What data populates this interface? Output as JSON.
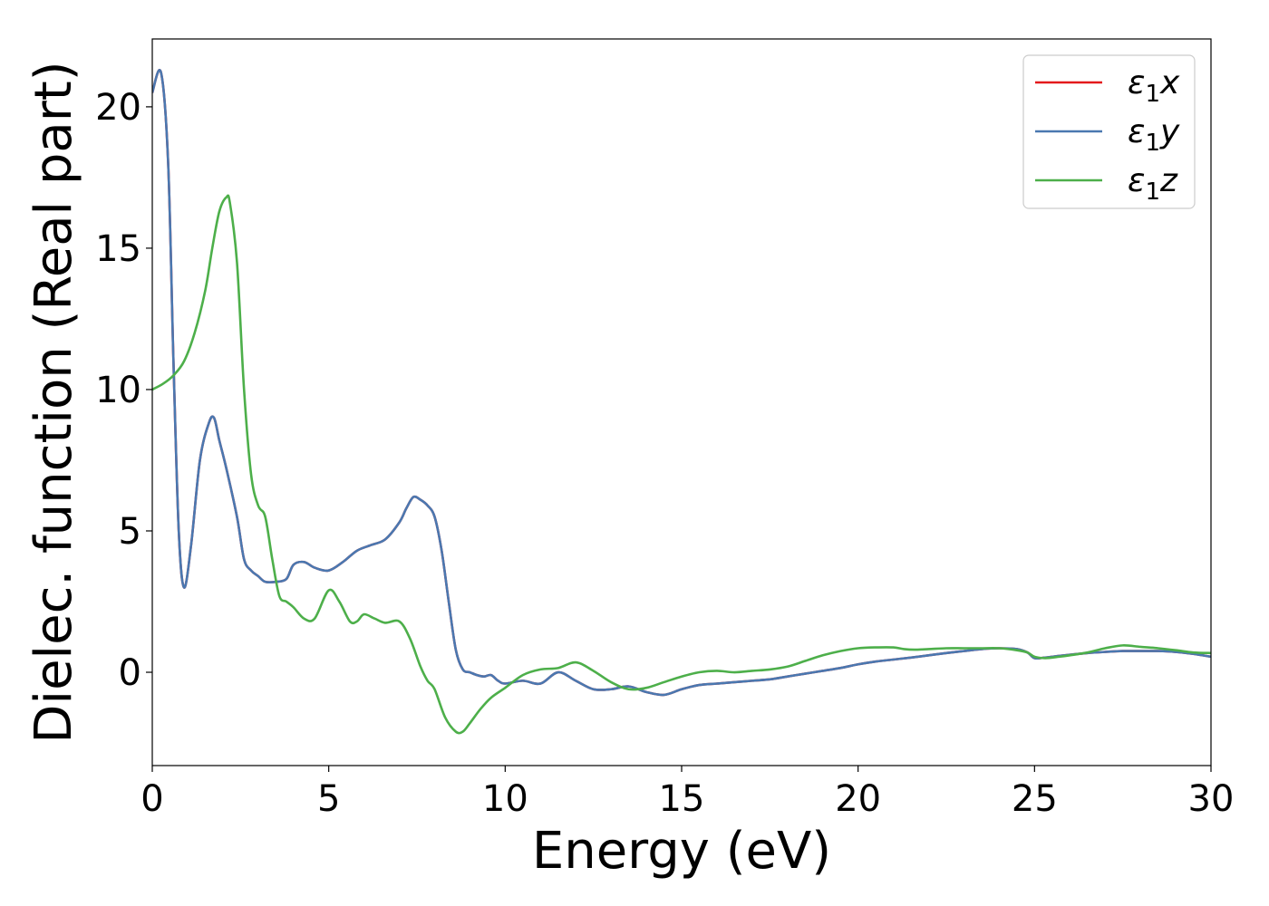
{
  "chart_data": {
    "type": "line",
    "title": "",
    "xlabel": "Energy (eV)",
    "ylabel": "Dielec. function (Real part)",
    "xlim": [
      0,
      30
    ],
    "ylim": [
      -3.3,
      22.4
    ],
    "xticks": [
      0,
      5,
      10,
      15,
      20,
      25,
      30
    ],
    "yticks": [
      0,
      5,
      10,
      15,
      20
    ],
    "grid": false,
    "legend_position": "top-right",
    "series": [
      {
        "name": "ε₁x",
        "legend_label": "ε1x",
        "color": "#e41a1c",
        "x": [
          0,
          0.25,
          0.45,
          0.6,
          0.75,
          0.9,
          1.1,
          1.35,
          1.6,
          1.75,
          1.9,
          2.1,
          2.4,
          2.6,
          2.8,
          3.0,
          3.2,
          3.5,
          3.8,
          4.0,
          4.3,
          4.6,
          5.0,
          5.4,
          5.8,
          6.2,
          6.6,
          7.0,
          7.2,
          7.4,
          7.6,
          7.8,
          8.0,
          8.2,
          8.4,
          8.6,
          8.8,
          9.0,
          9.2,
          9.4,
          9.6,
          9.8,
          10.0,
          10.5,
          11.0,
          11.5,
          12.0,
          12.5,
          13.0,
          13.5,
          14.0,
          14.5,
          15.0,
          15.5,
          16.0,
          16.5,
          17.0,
          17.5,
          18.0,
          18.5,
          19.0,
          19.5,
          20.0,
          20.5,
          21.0,
          21.5,
          22.0,
          22.5,
          23.0,
          23.5,
          24.0,
          24.5,
          24.8,
          25.0,
          25.3,
          25.7,
          26.0,
          26.5,
          27.0,
          27.5,
          28.0,
          28.5,
          29.0,
          29.5,
          30.0
        ],
        "y": [
          20.5,
          21.2,
          18.0,
          11.0,
          5.0,
          3.0,
          4.5,
          7.5,
          8.8,
          9.0,
          8.2,
          7.2,
          5.5,
          4.0,
          3.6,
          3.4,
          3.2,
          3.2,
          3.3,
          3.8,
          3.9,
          3.7,
          3.6,
          3.9,
          4.3,
          4.5,
          4.7,
          5.3,
          5.8,
          6.2,
          6.1,
          5.9,
          5.5,
          4.3,
          2.5,
          0.8,
          0.1,
          0.0,
          -0.1,
          -0.15,
          -0.1,
          -0.3,
          -0.4,
          -0.3,
          -0.4,
          0.0,
          -0.3,
          -0.6,
          -0.6,
          -0.5,
          -0.7,
          -0.8,
          -0.6,
          -0.45,
          -0.4,
          -0.35,
          -0.3,
          -0.25,
          -0.15,
          -0.05,
          0.05,
          0.15,
          0.28,
          0.38,
          0.45,
          0.52,
          0.6,
          0.68,
          0.75,
          0.82,
          0.85,
          0.82,
          0.7,
          0.5,
          0.52,
          0.58,
          0.62,
          0.68,
          0.72,
          0.75,
          0.75,
          0.75,
          0.72,
          0.65,
          0.55
        ]
      },
      {
        "name": "ε₁y",
        "legend_label": "ε1y",
        "color": "#4a78b0",
        "x": [
          0,
          0.25,
          0.45,
          0.6,
          0.75,
          0.9,
          1.1,
          1.35,
          1.6,
          1.75,
          1.9,
          2.1,
          2.4,
          2.6,
          2.8,
          3.0,
          3.2,
          3.5,
          3.8,
          4.0,
          4.3,
          4.6,
          5.0,
          5.4,
          5.8,
          6.2,
          6.6,
          7.0,
          7.2,
          7.4,
          7.6,
          7.8,
          8.0,
          8.2,
          8.4,
          8.6,
          8.8,
          9.0,
          9.2,
          9.4,
          9.6,
          9.8,
          10.0,
          10.5,
          11.0,
          11.5,
          12.0,
          12.5,
          13.0,
          13.5,
          14.0,
          14.5,
          15.0,
          15.5,
          16.0,
          16.5,
          17.0,
          17.5,
          18.0,
          18.5,
          19.0,
          19.5,
          20.0,
          20.5,
          21.0,
          21.5,
          22.0,
          22.5,
          23.0,
          23.5,
          24.0,
          24.5,
          24.8,
          25.0,
          25.3,
          25.7,
          26.0,
          26.5,
          27.0,
          27.5,
          28.0,
          28.5,
          29.0,
          29.5,
          30.0
        ],
        "y": [
          20.5,
          21.2,
          18.0,
          11.0,
          5.0,
          3.0,
          4.5,
          7.5,
          8.8,
          9.0,
          8.2,
          7.2,
          5.5,
          4.0,
          3.6,
          3.4,
          3.2,
          3.2,
          3.3,
          3.8,
          3.9,
          3.7,
          3.6,
          3.9,
          4.3,
          4.5,
          4.7,
          5.3,
          5.8,
          6.2,
          6.1,
          5.9,
          5.5,
          4.3,
          2.5,
          0.8,
          0.1,
          0.0,
          -0.1,
          -0.15,
          -0.1,
          -0.3,
          -0.4,
          -0.3,
          -0.4,
          0.0,
          -0.3,
          -0.6,
          -0.6,
          -0.5,
          -0.7,
          -0.8,
          -0.6,
          -0.45,
          -0.4,
          -0.35,
          -0.3,
          -0.25,
          -0.15,
          -0.05,
          0.05,
          0.15,
          0.28,
          0.38,
          0.45,
          0.52,
          0.6,
          0.68,
          0.75,
          0.82,
          0.85,
          0.82,
          0.7,
          0.5,
          0.52,
          0.58,
          0.62,
          0.68,
          0.72,
          0.75,
          0.75,
          0.75,
          0.72,
          0.65,
          0.55
        ]
      },
      {
        "name": "ε₁z",
        "legend_label": "ε1z",
        "color": "#4daf4a",
        "x": [
          0,
          0.3,
          0.6,
          0.9,
          1.2,
          1.5,
          1.7,
          1.9,
          2.1,
          2.2,
          2.4,
          2.6,
          2.8,
          3.0,
          3.2,
          3.4,
          3.6,
          3.8,
          4.0,
          4.3,
          4.6,
          5.0,
          5.3,
          5.6,
          5.8,
          6.0,
          6.3,
          6.6,
          7.0,
          7.3,
          7.6,
          7.8,
          8.0,
          8.3,
          8.6,
          8.8,
          9.0,
          9.3,
          9.6,
          10.0,
          10.5,
          11.0,
          11.5,
          12.0,
          12.5,
          13.0,
          13.5,
          14.0,
          14.5,
          15.0,
          15.5,
          16.0,
          16.5,
          17.0,
          17.5,
          18.0,
          18.5,
          19.0,
          19.5,
          20.0,
          20.5,
          21.0,
          21.3,
          21.6,
          22.0,
          22.5,
          23.0,
          23.5,
          24.0,
          24.5,
          24.8,
          25.0,
          25.3,
          25.7,
          26.0,
          26.5,
          27.0,
          27.5,
          28.0,
          28.5,
          29.0,
          29.5,
          30.0
        ],
        "y": [
          10.0,
          10.2,
          10.5,
          11.0,
          12.0,
          13.5,
          15.0,
          16.3,
          16.8,
          16.6,
          14.5,
          10.0,
          7.0,
          5.9,
          5.5,
          4.0,
          2.7,
          2.5,
          2.3,
          1.9,
          1.9,
          2.9,
          2.5,
          1.8,
          1.8,
          2.05,
          1.9,
          1.75,
          1.8,
          1.2,
          0.2,
          -0.3,
          -0.6,
          -1.6,
          -2.1,
          -2.1,
          -1.8,
          -1.3,
          -0.9,
          -0.55,
          -0.1,
          0.1,
          0.15,
          0.35,
          0.05,
          -0.35,
          -0.6,
          -0.55,
          -0.35,
          -0.15,
          0.0,
          0.05,
          0.0,
          0.05,
          0.1,
          0.2,
          0.4,
          0.6,
          0.75,
          0.85,
          0.88,
          0.88,
          0.82,
          0.8,
          0.82,
          0.85,
          0.85,
          0.85,
          0.85,
          0.78,
          0.7,
          0.55,
          0.5,
          0.55,
          0.6,
          0.7,
          0.85,
          0.95,
          0.9,
          0.85,
          0.78,
          0.7,
          0.68
        ]
      }
    ]
  }
}
